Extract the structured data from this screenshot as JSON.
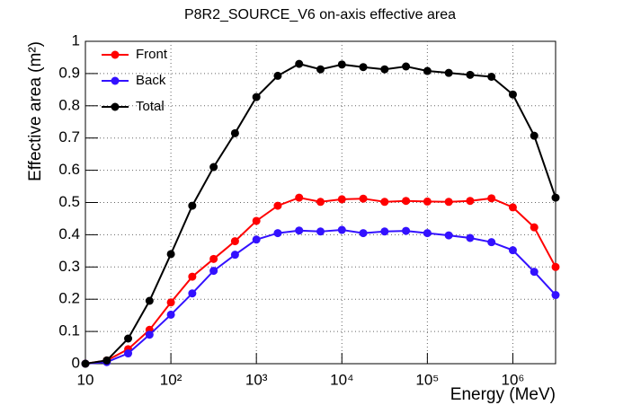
{
  "chart_data": {
    "type": "line",
    "title": "P8R2_SOURCE_V6 on-axis effective area",
    "x_label": "Energy (MeV)",
    "y_label": "Effective area (m²)",
    "x_scale": "log",
    "grid": true,
    "legend_position": "top-left",
    "x": [
      10,
      17.78,
      31.62,
      56.23,
      100,
      177.8,
      316.2,
      562.3,
      1000,
      1778,
      3162,
      5623,
      10000,
      17783,
      31623,
      56234,
      100000,
      177828,
      316228,
      562341,
      1000000,
      1778279,
      3162278
    ],
    "series": [
      {
        "name": "Front",
        "color": "#ff0000",
        "values": [
          0,
          0.01,
          0.045,
          0.105,
          0.19,
          0.27,
          0.325,
          0.38,
          0.443,
          0.49,
          0.515,
          0.502,
          0.51,
          0.512,
          0.502,
          0.505,
          0.503,
          0.502,
          0.505,
          0.513,
          0.485,
          0.423,
          0.3
        ]
      },
      {
        "name": "Back",
        "color": "#3311ff",
        "values": [
          0,
          0.005,
          0.032,
          0.09,
          0.152,
          0.218,
          0.288,
          0.338,
          0.385,
          0.405,
          0.413,
          0.41,
          0.415,
          0.405,
          0.41,
          0.412,
          0.405,
          0.398,
          0.39,
          0.377,
          0.352,
          0.285,
          0.213
        ]
      },
      {
        "name": "Total",
        "color": "#000000",
        "values": [
          0,
          0.01,
          0.078,
          0.195,
          0.34,
          0.49,
          0.61,
          0.715,
          0.827,
          0.893,
          0.93,
          0.913,
          0.928,
          0.92,
          0.913,
          0.922,
          0.908,
          0.902,
          0.896,
          0.89,
          0.835,
          0.707,
          0.515
        ]
      }
    ],
    "xlim": [
      10,
      3162278
    ],
    "ylim": [
      0,
      1
    ],
    "xticks": [
      10,
      {
        "value": 100,
        "label": "10²"
      },
      {
        "value": 1000,
        "label": "10³"
      },
      {
        "value": 10000,
        "label": "10⁴"
      },
      {
        "value": 100000,
        "label": "10⁵"
      },
      {
        "value": 1000000,
        "label": "10⁶"
      }
    ],
    "yticks": [
      0,
      0.1,
      0.2,
      0.3,
      0.4,
      0.5,
      0.6,
      0.7,
      0.8,
      0.9,
      1
    ]
  }
}
